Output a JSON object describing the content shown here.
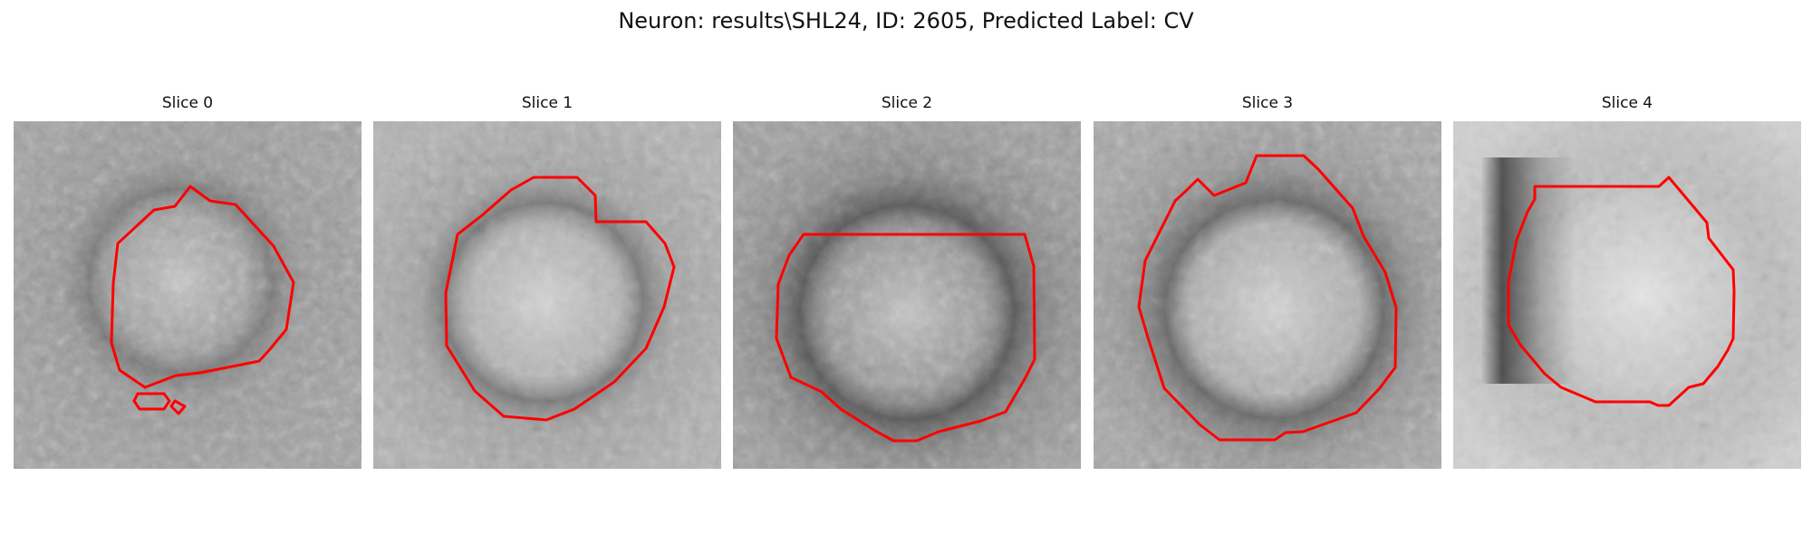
{
  "figure": {
    "title": "Neuron: results\\SHL24, ID: 2605, Predicted Label: CV"
  },
  "slices": [
    {
      "title": "Slice 0",
      "contour_color": "#ff0000",
      "outline_label": "red contour"
    },
    {
      "title": "Slice 1",
      "contour_color": "#ff0000",
      "outline_label": "red contour"
    },
    {
      "title": "Slice 2",
      "contour_color": "#ff0000",
      "outline_label": "red contour"
    },
    {
      "title": "Slice 3",
      "contour_color": "#ff0000",
      "outline_label": "red contour"
    },
    {
      "title": "Slice 4",
      "contour_color": "#ff0000",
      "outline_label": "red contour"
    }
  ]
}
